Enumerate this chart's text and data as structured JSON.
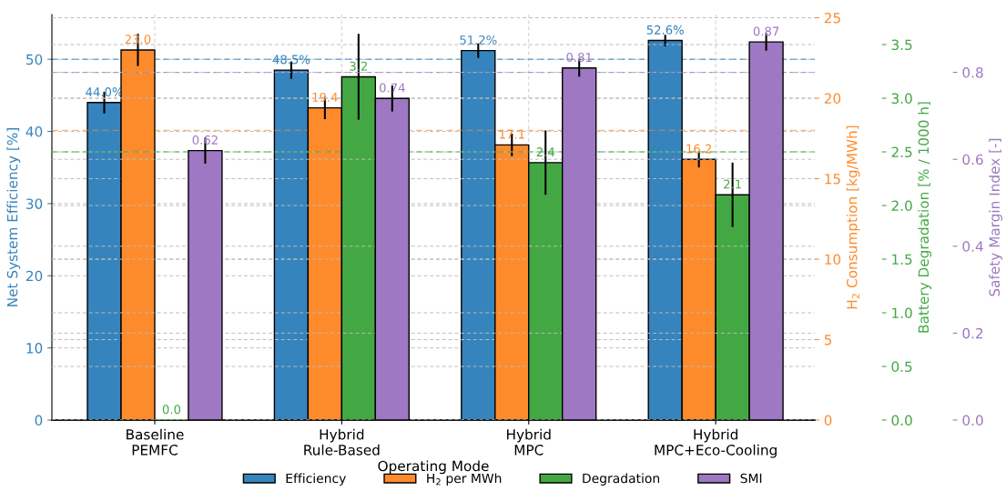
{
  "chart_data": [
    {
      "type": "bar",
      "categories": [
        "Baseline\nPEMFC",
        "Hybrid\nRule-Based",
        "Hybrid\nMPC",
        "Hybrid\nMPC+Eco-Cooling"
      ],
      "xlabel": "Operating Mode",
      "ylabel": "Net System Efficiency [%]",
      "y2label": "H$_{2}$ Consumption [kg/MWh]",
      "y3label": "Battery Degradation [% / 1000 h]",
      "series": [
        {
          "name": "Efficiency",
          "color": "#3584bd",
          "axis": "y",
          "values": [
            44.0,
            48.5,
            51.2,
            52.6
          ],
          "errors": [
            1.5,
            1.2,
            1.0,
            0.8
          ],
          "value_labels": [
            "44.0%",
            "48.5%",
            "51.2%",
            "52.6%"
          ]
        },
        {
          "name": "H$_{2}$ per MWh",
          "color": "#fe8b2b",
          "axis": "y2",
          "values": [
            23.0,
            19.4,
            17.1,
            16.2
          ],
          "errors": [
            1.0,
            0.7,
            0.7,
            0.5
          ],
          "value_labels": [
            "23.0",
            "19.4",
            "17.1",
            "16.2"
          ]
        },
        {
          "name": "Degradation",
          "color": "#43a843",
          "axis": "y3",
          "values": [
            0.0,
            3.2,
            2.4,
            2.1
          ],
          "errors": [
            null,
            0.4,
            0.3,
            0.3
          ],
          "value_labels": [
            "0.0",
            "3.2",
            "2.4",
            "2.1"
          ]
        }
      ],
      "ylim": [
        0,
        56.2
      ],
      "yticks": [
        0,
        10,
        20,
        30,
        40,
        50
      ],
      "y2lim": [
        0,
        25.2
      ],
      "y2ticks": [
        0,
        5,
        10,
        15,
        20,
        25
      ],
      "y3lim": [
        0,
        3.78
      ],
      "y3ticks": [
        {
          "value": 0,
          "label": "0.0"
        },
        0.5,
        {
          "value": 1,
          "label": "1.0"
        },
        1.5,
        {
          "value": 2,
          "label": "2.0"
        },
        2.5,
        {
          "value": 3,
          "label": "3.0"
        },
        3.5
      ],
      "ref_lines": [
        {
          "axis": "y",
          "value": 50,
          "color": "#3584bd",
          "line_style": "dashed"
        },
        {
          "axis": "y2",
          "value": 18,
          "color": "#fe8b2b",
          "line_style": "dashed"
        },
        {
          "axis": "y3",
          "value": 2.5,
          "color": "#43a843",
          "line_style": "dashed"
        }
      ],
      "grid": true,
      "legend": "bottom"
    },
    {
      "type": "bar",
      "categories": [
        null,
        null,
        null,
        null
      ],
      "ylabel": "Safety Margin Index [-]",
      "series": [
        {
          "name": "SMI",
          "color": "#9e78c2",
          "values": [
            0.62,
            0.74,
            0.81,
            0.87
          ],
          "errors": [
            0.03,
            0.03,
            0.02,
            0.02
          ],
          "value_labels": [
            "0.62",
            "0.74",
            "0.81",
            "0.87"
          ]
        }
      ],
      "ylim": [
        0,
        0.933
      ],
      "yticks": [
        {
          "value": 0,
          "label": "0.0"
        },
        0.2,
        0.4,
        0.6,
        0.8
      ],
      "ref_lines": [
        {
          "axis": "y",
          "value": 0.8,
          "color": "#9e78c2",
          "line_style": "dashed"
        }
      ],
      "tick_labels": "y",
      "grid": "y",
      "legend": "bottom"
    }
  ]
}
